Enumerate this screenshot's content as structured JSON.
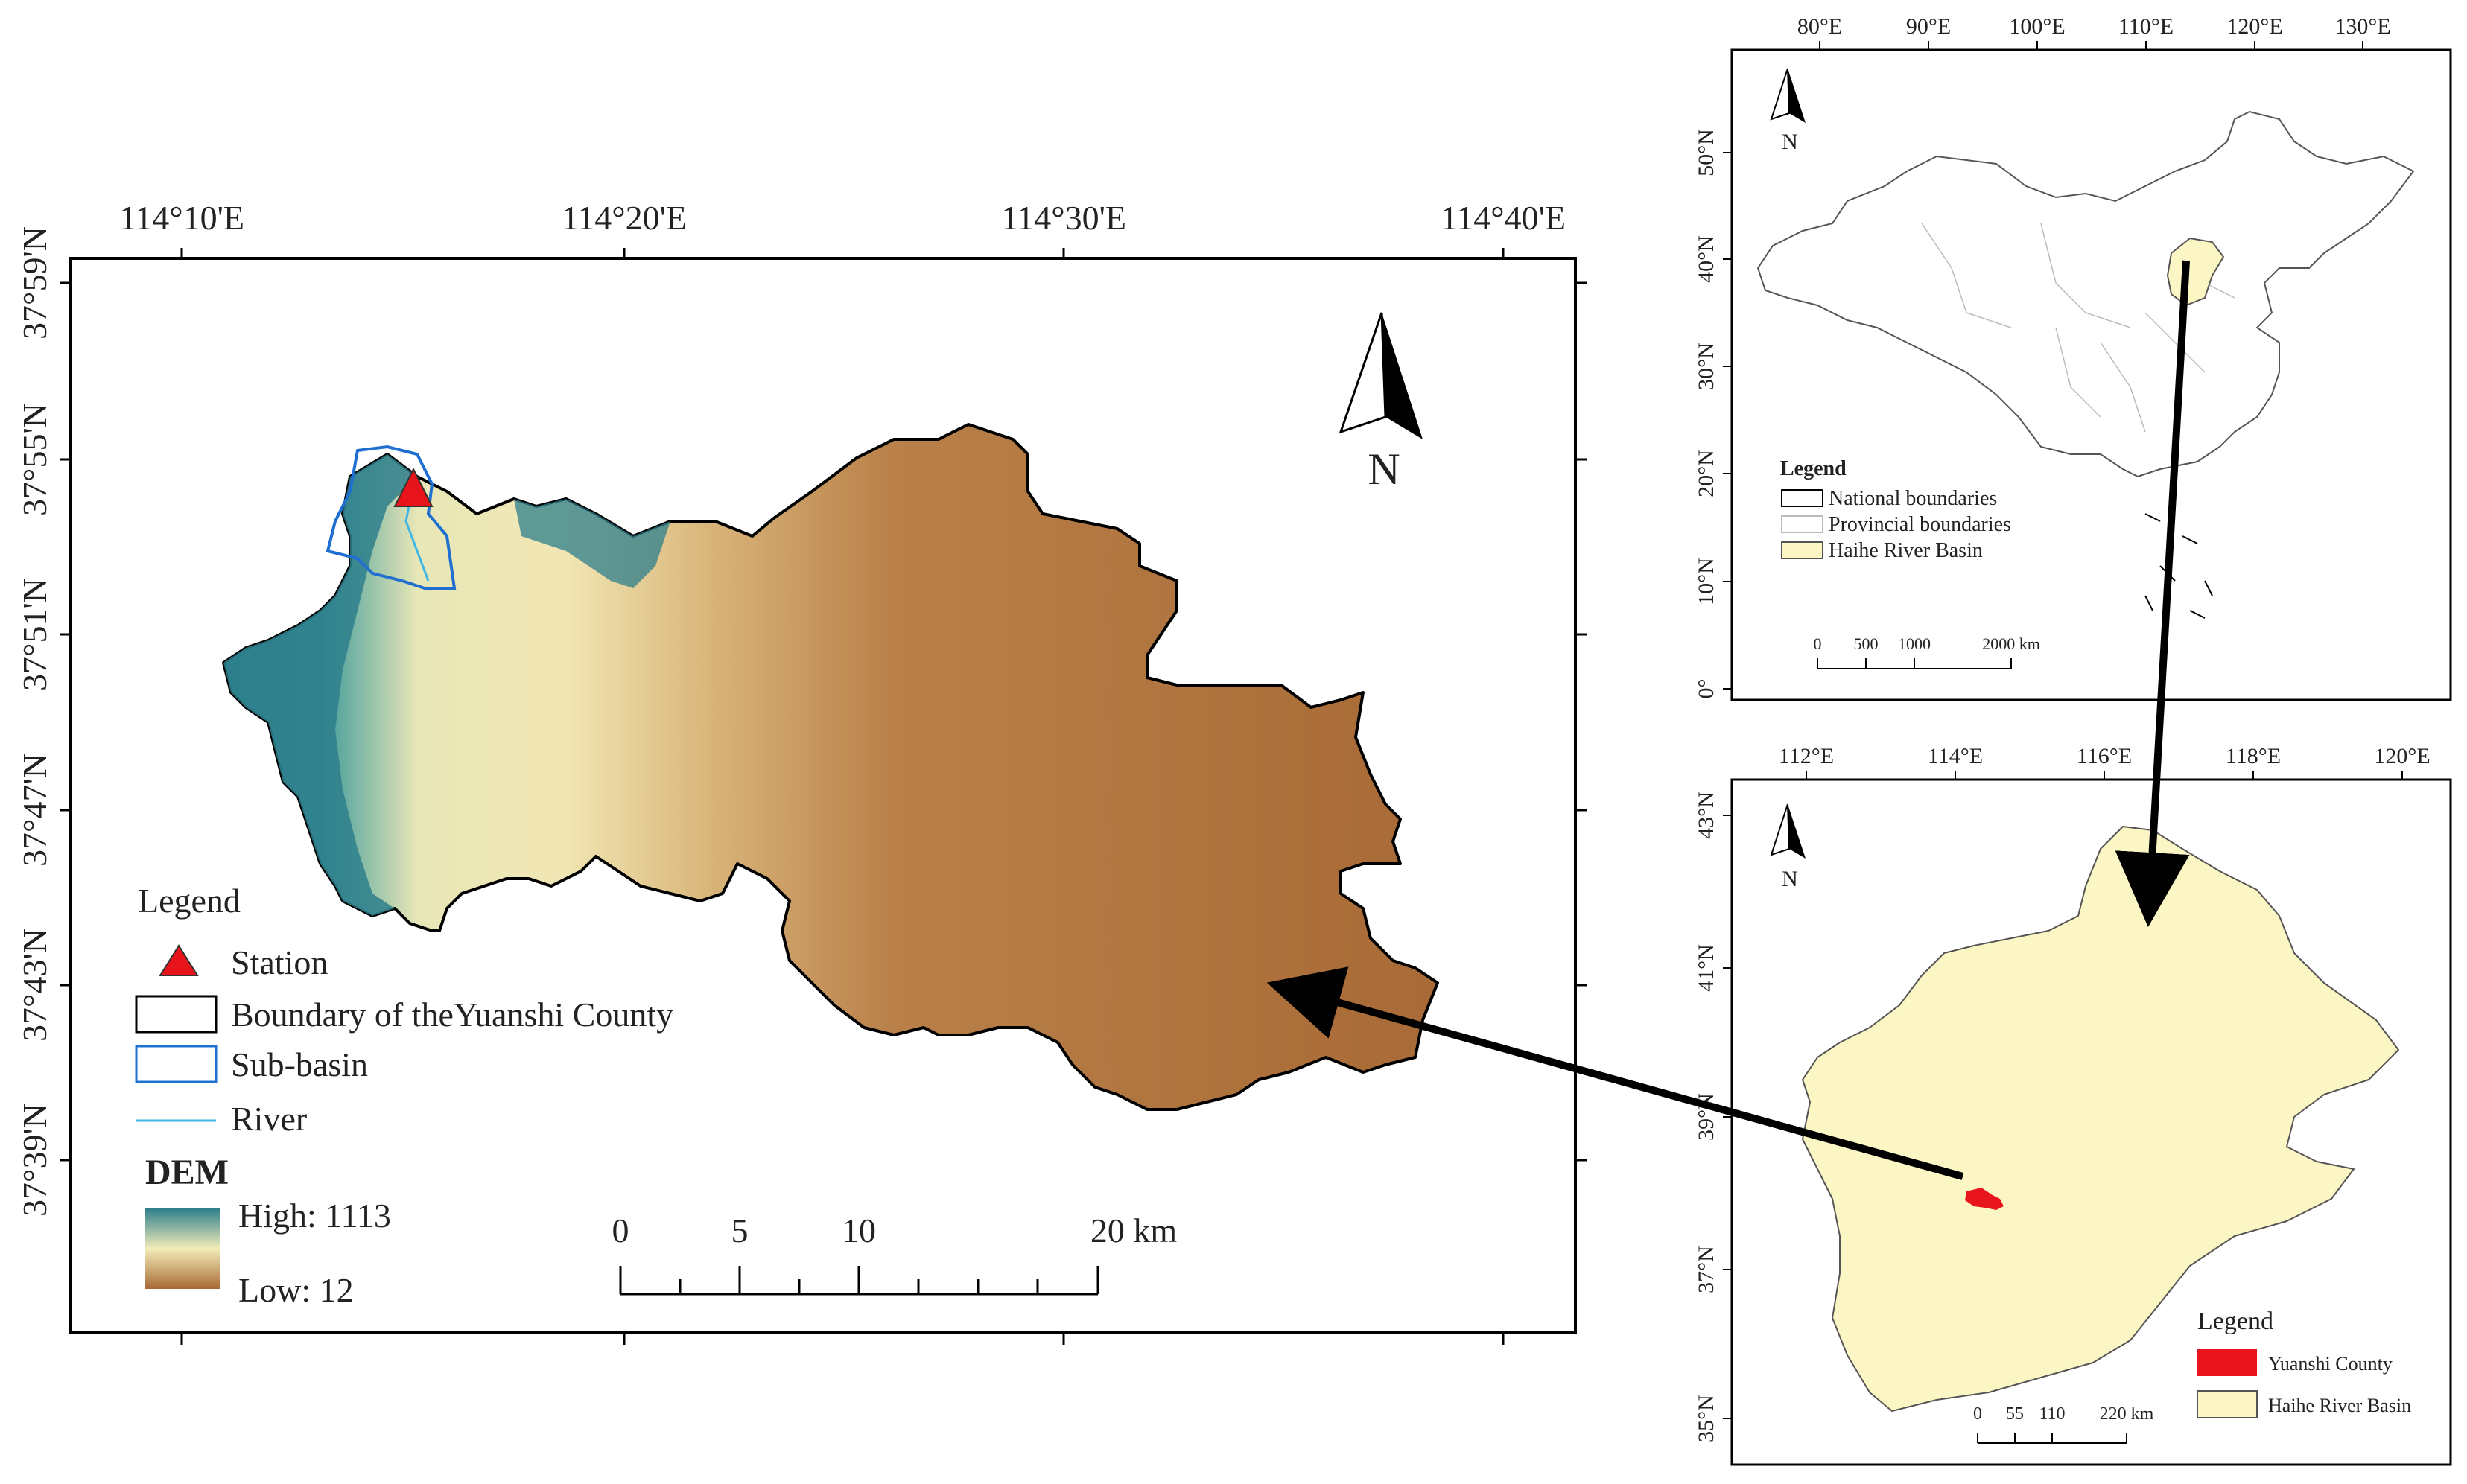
{
  "main_map": {
    "top_labels": [
      "114°10'E",
      "114°20'E",
      "114°30'E",
      "114°40'E"
    ],
    "left_labels": [
      "37°59'N",
      "37°55'N",
      "37°51'N",
      "37°47'N",
      "37°43'N",
      "37°39'N"
    ],
    "north_label": "N",
    "legend": {
      "title": "Legend",
      "items": [
        {
          "label": "Station",
          "symbol": "red-triangle",
          "color": "#e8141c"
        },
        {
          "label": "Boundary of theYuanshi County",
          "symbol": "black-box",
          "color": "#000000"
        },
        {
          "label": "Sub-basin",
          "symbol": "blue-box",
          "color": "#1f6fd0"
        },
        {
          "label": "River",
          "symbol": "cyan-line",
          "color": "#3fb7e6"
        }
      ],
      "dem_title": "DEM",
      "dem_high": "High: 1113",
      "dem_low": "Low: 12",
      "dem_colors": {
        "high": "#2e7f8c",
        "mid": "#f3ecb9",
        "low": "#a86a36"
      }
    },
    "scalebar": {
      "labels": [
        "0",
        "5",
        "10",
        "20 km"
      ]
    }
  },
  "china_map": {
    "top_labels": [
      "80°E",
      "90°E",
      "100°E",
      "110°E",
      "120°E",
      "130°E"
    ],
    "left_labels": [
      "50°N",
      "40°N",
      "30°N",
      "20°N",
      "10°N",
      "0°"
    ],
    "north_label": "N",
    "legend": {
      "title": "Legend",
      "items": [
        {
          "label": "National boundaries",
          "color": "#ffffff"
        },
        {
          "label": "Provincial boundaries",
          "color": "#ffffff"
        },
        {
          "label": "Haihe River Basin",
          "color": "#fbf6c3"
        }
      ]
    },
    "scalebar": {
      "labels": [
        "0",
        "500",
        "1000",
        "2000 km"
      ]
    }
  },
  "basin_map": {
    "top_labels": [
      "112°E",
      "114°E",
      "116°E",
      "118°E",
      "120°E"
    ],
    "left_labels": [
      "43°N",
      "41°N",
      "39°N",
      "37°N",
      "35°N"
    ],
    "north_label": "N",
    "legend": {
      "title": "Legend",
      "items": [
        {
          "label": "Yuanshi County",
          "color": "#e8141c"
        },
        {
          "label": "Haihe River Basin",
          "color": "#fbf6c3"
        }
      ]
    },
    "scalebar": {
      "labels": [
        "0",
        "55",
        "110",
        "220 km"
      ]
    }
  }
}
